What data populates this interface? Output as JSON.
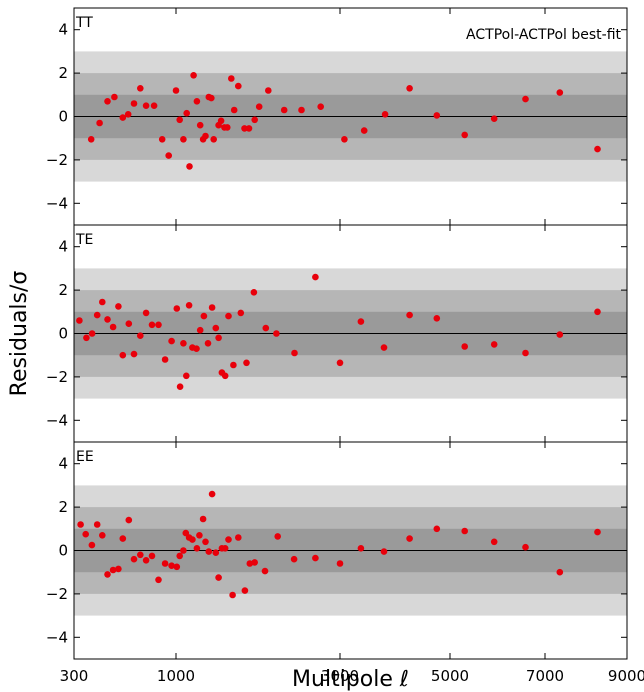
{
  "chart_data": {
    "type": "scatter",
    "xlabel": "Multipole ℓ",
    "ylabel": "Residuals/σ",
    "xlim": [
      300,
      9000
    ],
    "ylim": [
      -5,
      5
    ],
    "xticks": [
      300,
      1000,
      3000,
      5000,
      7000,
      9000
    ],
    "yticks": [
      -4,
      -2,
      0,
      2,
      4
    ],
    "bands": [
      {
        "sigma": 1,
        "color": "#9a9a9a"
      },
      {
        "sigma": 2,
        "color": "#b6b6b6"
      },
      {
        "sigma": 3,
        "color": "#d8d8d8"
      }
    ],
    "marker_color": "#e8000b",
    "legend_text": "ACTPol-ACTPol best-fit",
    "panels": [
      {
        "label": "TT",
        "points": [
          [
            418,
            -1.05
          ],
          [
            476,
            -0.3
          ],
          [
            530,
            0.7
          ],
          [
            577,
            0.9
          ],
          [
            635,
            -0.05
          ],
          [
            672,
            0.1
          ],
          [
            712,
            0.6
          ],
          [
            755,
            1.3
          ],
          [
            795,
            0.5
          ],
          [
            850,
            0.5
          ],
          [
            905,
            -1.05
          ],
          [
            950,
            -1.8
          ],
          [
            1000,
            1.2
          ],
          [
            1045,
            -0.15
          ],
          [
            1090,
            -1.05
          ],
          [
            1130,
            0.15
          ],
          [
            1165,
            -2.3
          ],
          [
            1215,
            1.9
          ],
          [
            1255,
            0.7
          ],
          [
            1295,
            -0.4
          ],
          [
            1330,
            -1.05
          ],
          [
            1360,
            -0.9
          ],
          [
            1400,
            0.9
          ],
          [
            1430,
            0.85
          ],
          [
            1460,
            -1.05
          ],
          [
            1520,
            -0.4
          ],
          [
            1550,
            -0.2
          ],
          [
            1590,
            -0.5
          ],
          [
            1625,
            -0.5
          ],
          [
            1675,
            1.75
          ],
          [
            1710,
            0.3
          ],
          [
            1760,
            1.4
          ],
          [
            1835,
            -0.55
          ],
          [
            1890,
            -0.55
          ],
          [
            1960,
            -0.15
          ],
          [
            2015,
            0.45
          ],
          [
            2125,
            1.2
          ],
          [
            2320,
            0.3
          ],
          [
            2530,
            0.3
          ],
          [
            2765,
            0.45
          ],
          [
            3080,
            -1.05
          ],
          [
            3440,
            -0.65
          ],
          [
            3820,
            0.1
          ],
          [
            4265,
            1.3
          ],
          [
            4760,
            0.05
          ],
          [
            5310,
            -0.85
          ],
          [
            5930,
            -0.1
          ],
          [
            6590,
            0.8
          ],
          [
            7360,
            1.1
          ],
          [
            8280,
            -1.5
          ]
        ]
      },
      {
        "label": "TE",
        "points": [
          [
            337,
            0.6
          ],
          [
            385,
            -0.2
          ],
          [
            424,
            0.0
          ],
          [
            459,
            0.85
          ],
          [
            494,
            1.45
          ],
          [
            530,
            0.65
          ],
          [
            568,
            0.3
          ],
          [
            605,
            1.25
          ],
          [
            635,
            -1.0
          ],
          [
            676,
            0.45
          ],
          [
            712,
            -0.95
          ],
          [
            755,
            -0.1
          ],
          [
            795,
            0.95
          ],
          [
            835,
            0.4
          ],
          [
            880,
            0.4
          ],
          [
            925,
            -1.2
          ],
          [
            970,
            -0.35
          ],
          [
            1010,
            1.15
          ],
          [
            1050,
            -2.45
          ],
          [
            1090,
            -0.45
          ],
          [
            1125,
            -1.95
          ],
          [
            1160,
            1.3
          ],
          [
            1200,
            -0.65
          ],
          [
            1250,
            -0.7
          ],
          [
            1295,
            0.15
          ],
          [
            1340,
            0.8
          ],
          [
            1390,
            -0.45
          ],
          [
            1440,
            1.2
          ],
          [
            1485,
            0.25
          ],
          [
            1520,
            -0.2
          ],
          [
            1560,
            -1.8
          ],
          [
            1600,
            -1.95
          ],
          [
            1640,
            0.8
          ],
          [
            1700,
            -1.45
          ],
          [
            1790,
            0.95
          ],
          [
            1860,
            -1.35
          ],
          [
            1950,
            1.9
          ],
          [
            2095,
            0.25
          ],
          [
            2225,
            0.0
          ],
          [
            2445,
            -0.9
          ],
          [
            2700,
            2.6
          ],
          [
            3000,
            -1.35
          ],
          [
            3380,
            0.55
          ],
          [
            3800,
            -0.65
          ],
          [
            4265,
            0.85
          ],
          [
            4760,
            0.7
          ],
          [
            5310,
            -0.6
          ],
          [
            5930,
            -0.5
          ],
          [
            6590,
            -0.9
          ],
          [
            7360,
            -0.05
          ],
          [
            8280,
            1.0
          ]
        ]
      },
      {
        "label": "EE",
        "points": [
          [
            345,
            1.2
          ],
          [
            380,
            0.75
          ],
          [
            423,
            0.25
          ],
          [
            459,
            1.2
          ],
          [
            494,
            0.7
          ],
          [
            530,
            -1.1
          ],
          [
            568,
            -0.9
          ],
          [
            605,
            -0.85
          ],
          [
            635,
            0.55
          ],
          [
            676,
            1.4
          ],
          [
            712,
            -0.4
          ],
          [
            755,
            -0.2
          ],
          [
            795,
            -0.45
          ],
          [
            835,
            -0.25
          ],
          [
            880,
            -1.35
          ],
          [
            925,
            -0.6
          ],
          [
            970,
            -0.7
          ],
          [
            1010,
            -0.75
          ],
          [
            1045,
            -0.25
          ],
          [
            1090,
            0.0
          ],
          [
            1120,
            0.8
          ],
          [
            1160,
            0.6
          ],
          [
            1200,
            0.5
          ],
          [
            1255,
            0.1
          ],
          [
            1285,
            0.7
          ],
          [
            1330,
            1.45
          ],
          [
            1360,
            0.4
          ],
          [
            1400,
            -0.05
          ],
          [
            1440,
            2.6
          ],
          [
            1485,
            -0.1
          ],
          [
            1520,
            -1.25
          ],
          [
            1560,
            0.1
          ],
          [
            1600,
            0.1
          ],
          [
            1640,
            0.5
          ],
          [
            1690,
            -2.05
          ],
          [
            1760,
            0.6
          ],
          [
            1840,
            -1.85
          ],
          [
            1900,
            -0.6
          ],
          [
            1960,
            -0.55
          ],
          [
            2085,
            -0.95
          ],
          [
            2240,
            0.65
          ],
          [
            2440,
            -0.4
          ],
          [
            2700,
            -0.35
          ],
          [
            3000,
            -0.6
          ],
          [
            3380,
            0.1
          ],
          [
            3800,
            -0.05
          ],
          [
            4265,
            0.55
          ],
          [
            4760,
            1.0
          ],
          [
            5310,
            0.9
          ],
          [
            5930,
            0.4
          ],
          [
            6590,
            0.15
          ],
          [
            7360,
            -1.0
          ],
          [
            8280,
            0.85
          ]
        ]
      }
    ]
  }
}
